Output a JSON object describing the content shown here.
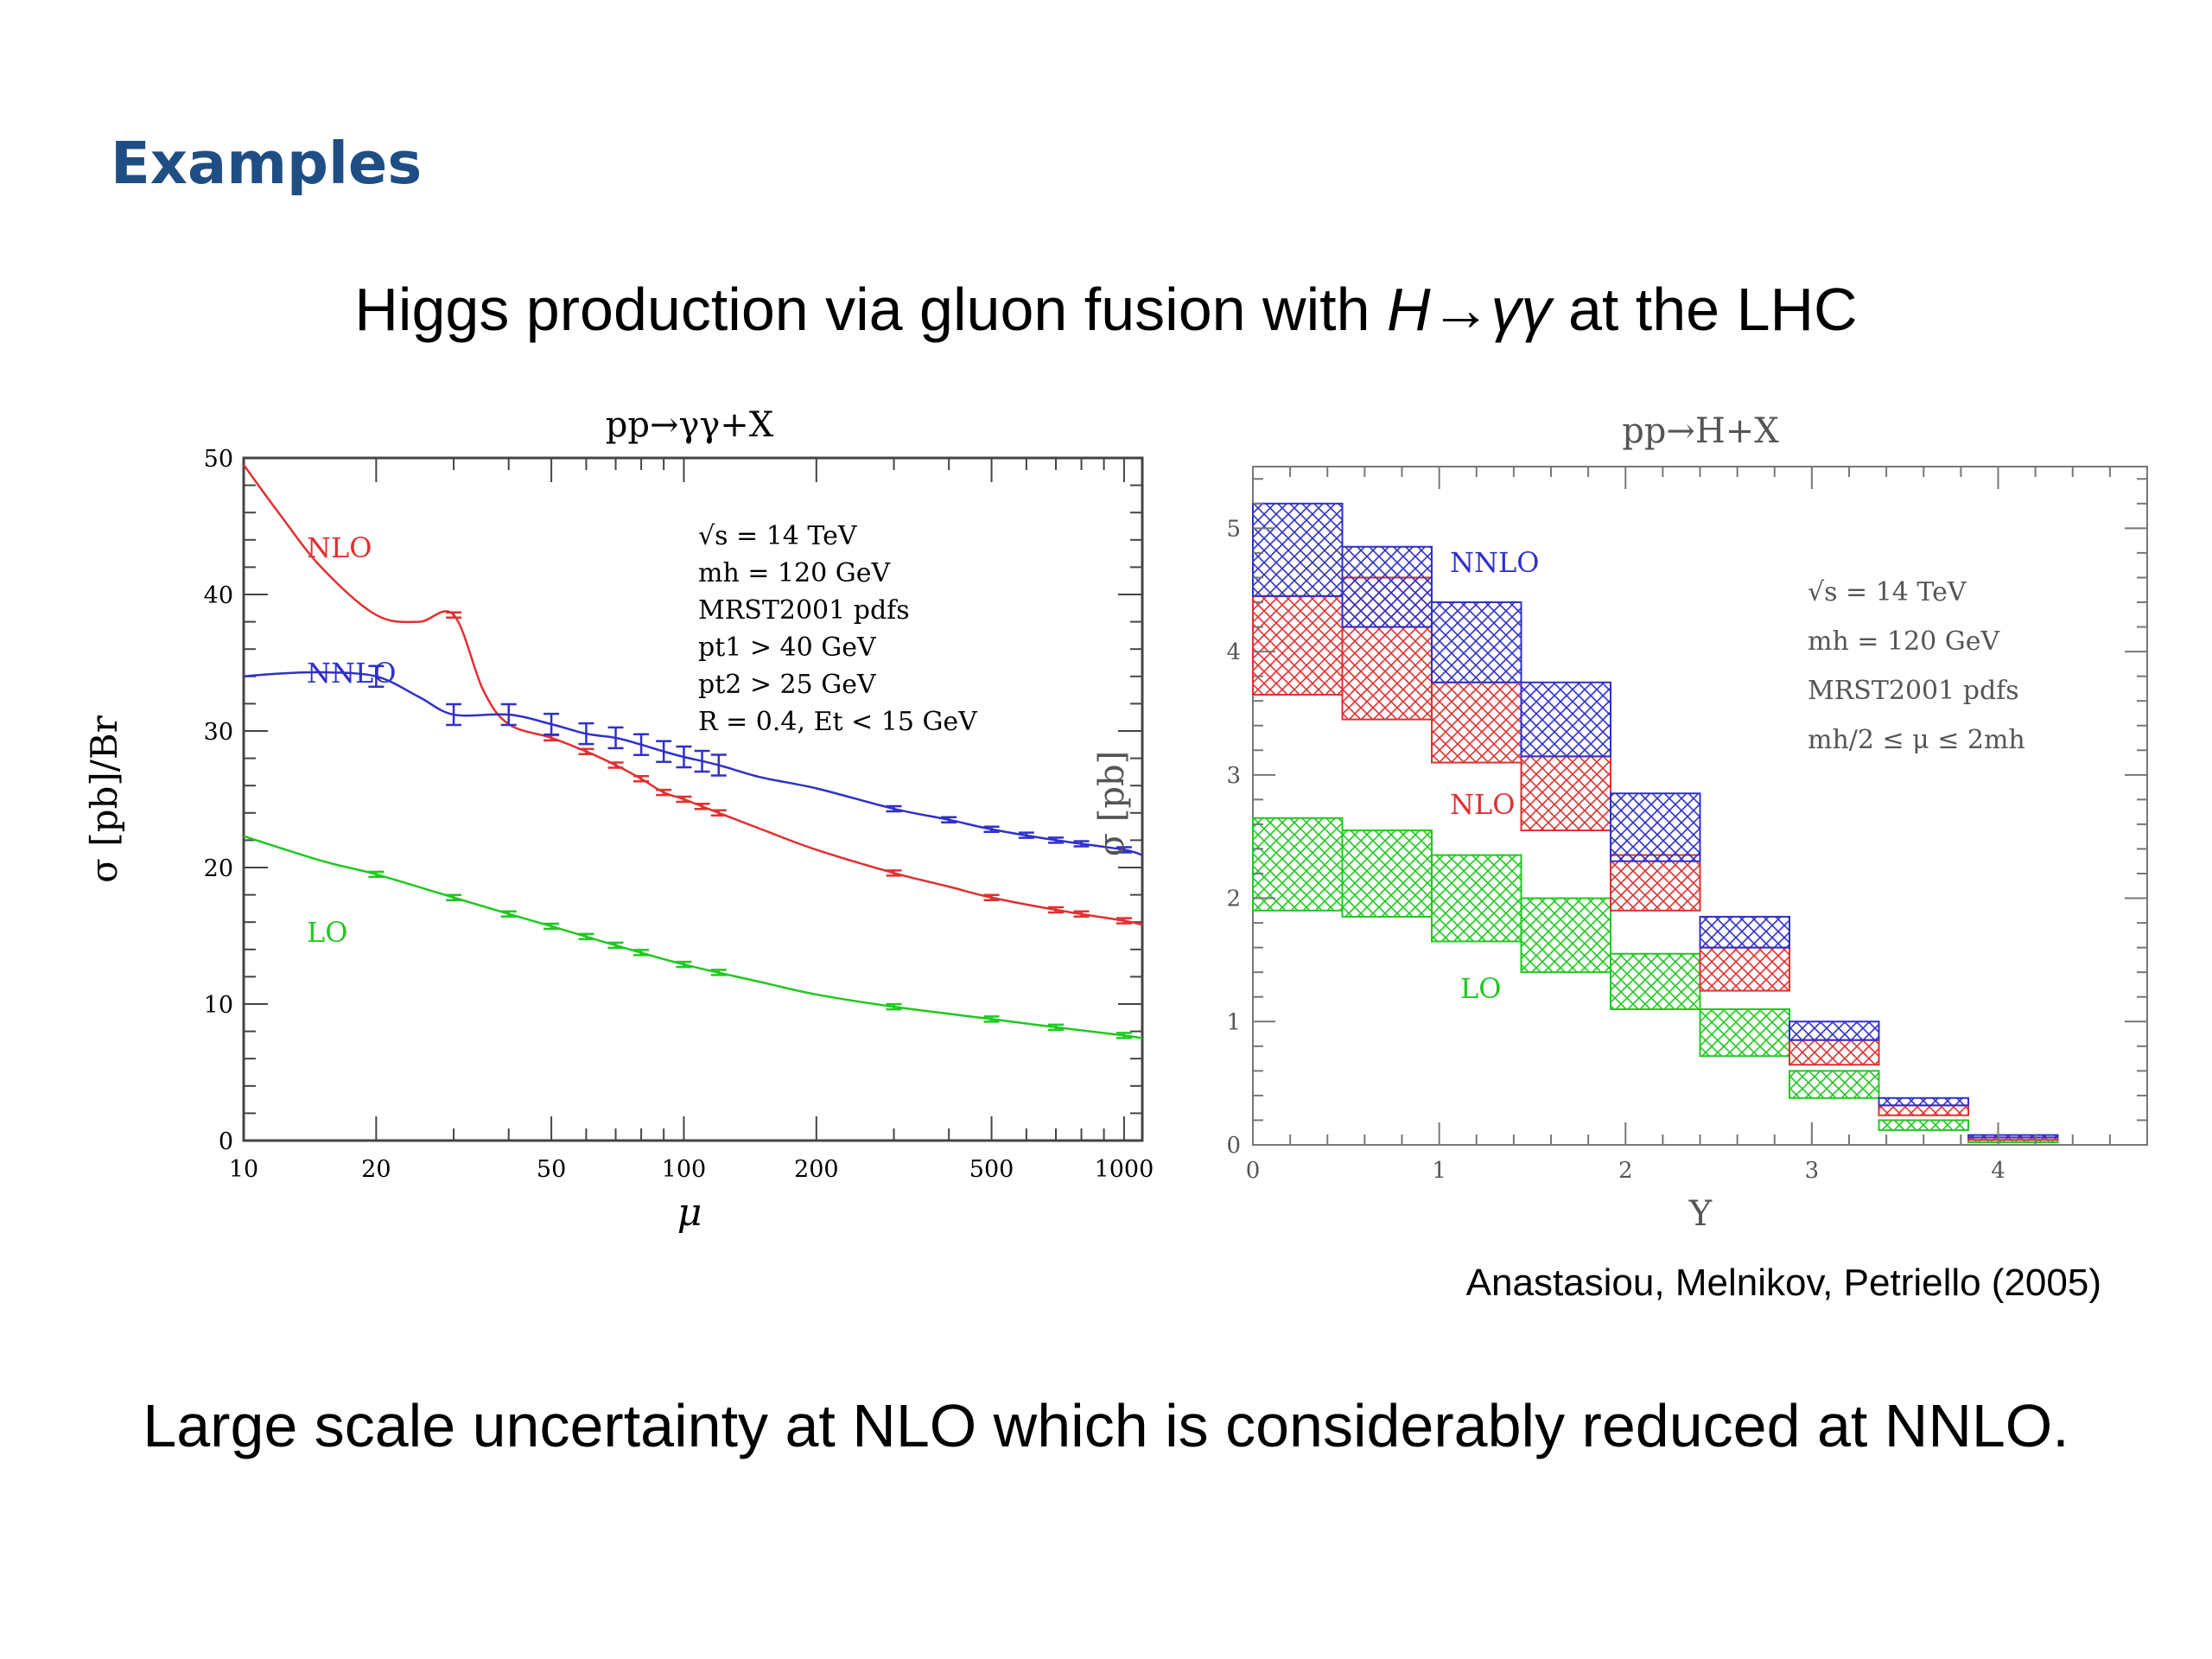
{
  "slide": {
    "heading": "Examples",
    "subtitle_prefix": "Higgs production via gluon fusion with ",
    "subtitle_formula": "H→γγ",
    "subtitle_suffix": " at the LHC",
    "citation": "Anastasiou, Melnikov, Petriello (2005)",
    "conclusion": "Large scale uncertainty at NLO which is considerably reduced at NNLO."
  },
  "colors": {
    "heading": "#1f4e84",
    "NLO": "#e03030",
    "NNLO": "#3030c8",
    "LO": "#20c820"
  },
  "chart_data": [
    {
      "type": "line",
      "title": "pp→γγ+X",
      "xlabel": "μ",
      "ylabel": "σ [pb]/Br",
      "xscale": "log",
      "xlim": [
        10,
        1100
      ],
      "ylim": [
        0,
        50
      ],
      "xticks": [
        10,
        20,
        50,
        100,
        200,
        500,
        1000
      ],
      "yticks": [
        0,
        10,
        20,
        30,
        40,
        50
      ],
      "legend_placement": "inline labels",
      "info_lines": [
        "√s = 14 TeV",
        "mh = 120 GeV",
        "MRST2001 pdfs",
        "pt1 > 40 GeV",
        "pt2 > 25 GeV",
        "R = 0.4, Et < 15 GeV"
      ],
      "series": [
        {
          "name": "NLO",
          "x": [
            10,
            12,
            15,
            20,
            25,
            30,
            35,
            40,
            50,
            60,
            70,
            80,
            90,
            100,
            120,
            150,
            200,
            300,
            400,
            500,
            700,
            1000,
            1100
          ],
          "y": [
            49.5,
            46,
            42,
            38.5,
            38,
            38.5,
            33,
            30.5,
            29.5,
            28.5,
            27.5,
            26.5,
            25.5,
            25,
            24,
            22.8,
            21.3,
            19.6,
            18.6,
            17.8,
            16.9,
            16.1,
            15.8
          ],
          "errors_at": [
            30,
            50,
            60,
            70,
            80,
            90,
            100,
            110,
            120,
            300,
            500,
            700,
            800,
            1000
          ]
        },
        {
          "name": "NNLO",
          "x": [
            10,
            12,
            15,
            20,
            25,
            30,
            40,
            50,
            60,
            70,
            80,
            90,
            100,
            120,
            150,
            200,
            300,
            400,
            500,
            700,
            1000,
            1100
          ],
          "y": [
            34,
            34.2,
            34.3,
            34,
            32.5,
            31.2,
            31.2,
            30.5,
            29.8,
            29.5,
            29,
            28.5,
            28.1,
            27.5,
            26.6,
            25.8,
            24.3,
            23.5,
            22.8,
            22,
            21.3,
            20.9
          ],
          "errors_at": [
            20,
            30,
            40,
            50,
            60,
            70,
            80,
            90,
            100,
            110,
            120,
            300,
            400,
            500,
            600,
            700,
            800,
            1000
          ]
        },
        {
          "name": "LO",
          "x": [
            10,
            15,
            20,
            30,
            40,
            50,
            70,
            100,
            150,
            200,
            300,
            500,
            700,
            1000,
            1100
          ],
          "y": [
            22.3,
            20.5,
            19.5,
            17.8,
            16.6,
            15.7,
            14.3,
            12.9,
            11.6,
            10.7,
            9.8,
            8.9,
            8.3,
            7.7,
            7.5
          ],
          "errors_at": [
            20,
            30,
            40,
            50,
            60,
            70,
            80,
            100,
            120,
            300,
            500,
            700,
            1000
          ]
        }
      ]
    },
    {
      "type": "bar",
      "title": "pp→H+X",
      "xlabel": "Y",
      "ylabel": "σ [pb]",
      "xlim": [
        0,
        4.8
      ],
      "ylim": [
        0,
        5.5
      ],
      "xticks": [
        0,
        1,
        2,
        3,
        4
      ],
      "yticks": [
        0,
        1,
        2,
        3,
        4,
        5
      ],
      "legend_placement": "inline labels",
      "info_lines": [
        "√s = 14 TeV",
        "mh = 120 GeV",
        "MRST2001 pdfs",
        "mh/2 ≤ μ ≤ 2mh"
      ],
      "bin_edges": [
        0,
        0.48,
        0.96,
        1.44,
        1.92,
        2.4,
        2.88,
        3.36,
        3.84,
        4.32
      ],
      "series": [
        {
          "name": "NNLO",
          "low": [
            4.45,
            4.2,
            3.75,
            3.15,
            2.3,
            1.6,
            0.85,
            0.32,
            0.06
          ],
          "high": [
            5.2,
            4.85,
            4.4,
            3.75,
            2.85,
            1.85,
            1.0,
            0.38,
            0.08
          ]
        },
        {
          "name": "NLO",
          "low": [
            3.65,
            3.45,
            3.1,
            2.55,
            1.9,
            1.25,
            0.65,
            0.24,
            0.04
          ],
          "high": [
            4.45,
            4.6,
            3.75,
            3.15,
            2.35,
            1.6,
            0.85,
            0.32,
            0.06
          ]
        },
        {
          "name": "LO",
          "low": [
            1.9,
            1.85,
            1.65,
            1.4,
            1.1,
            0.72,
            0.38,
            0.12,
            0.02
          ],
          "high": [
            2.65,
            2.55,
            2.35,
            2.0,
            1.55,
            1.1,
            0.6,
            0.2,
            0.04
          ]
        }
      ]
    }
  ]
}
